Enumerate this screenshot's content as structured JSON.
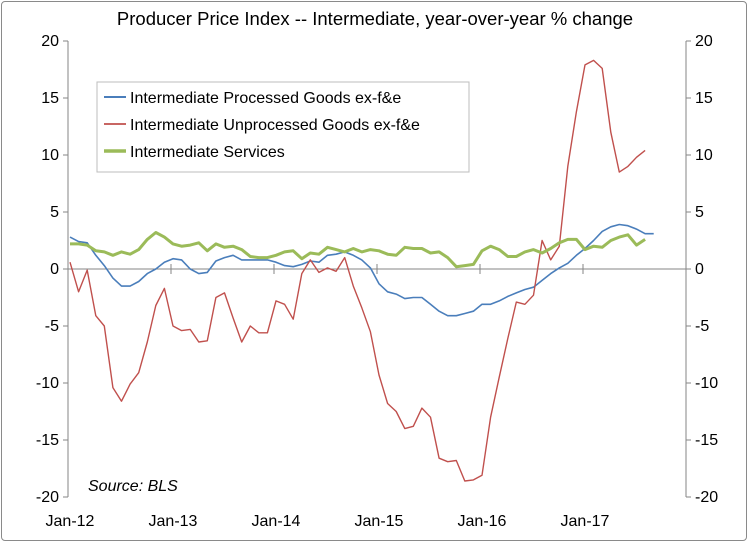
{
  "chart_data": {
    "type": "line",
    "title": "Producer Price Index -- Intermediate, year-over-year % change",
    "source": "Source: BLS",
    "ylim": [
      -20,
      20
    ],
    "y_ticks": [
      -20,
      -15,
      -10,
      -5,
      0,
      5,
      10,
      15,
      20
    ],
    "y_tick_labels": [
      "-20",
      "-15",
      "-10",
      "-5",
      "0",
      "5",
      "10",
      "15",
      "20"
    ],
    "x_tick_labels": [
      "Jan-12",
      "Jan-13",
      "Jan-14",
      "Jan-15",
      "Jan-16",
      "Jan-17"
    ],
    "x_start": "2012-01",
    "x_end": "2017-12",
    "legend_position": "top-left",
    "grid": false,
    "dual_y_axis": true,
    "series": [
      {
        "name": "Intermediate Processed Goods ex-f&e",
        "color": "#4a7ebb",
        "values": [
          2.8,
          2.4,
          2.3,
          1.2,
          0.3,
          -0.8,
          -1.5,
          -1.5,
          -1.1,
          -0.4,
          0.0,
          0.6,
          0.9,
          0.8,
          0.0,
          -0.4,
          -0.3,
          0.7,
          1.0,
          1.2,
          0.8,
          0.8,
          0.8,
          0.8,
          0.6,
          0.3,
          0.2,
          0.4,
          0.7,
          0.6,
          1.2,
          1.3,
          1.5,
          1.2,
          0.8,
          0.1,
          -1.3,
          -2.0,
          -2.2,
          -2.6,
          -2.5,
          -2.5,
          -3.1,
          -3.7,
          -4.1,
          -4.1,
          -3.9,
          -3.7,
          -3.1,
          -3.1,
          -2.8,
          -2.4,
          -2.1,
          -1.8,
          -1.6,
          -1.0,
          -0.4,
          0.1,
          0.5,
          1.2,
          1.8,
          2.5,
          3.3,
          3.7,
          3.9,
          3.8,
          3.5,
          3.1,
          3.1
        ]
      },
      {
        "name": "Intermediate Unprocessed Goods ex-f&e",
        "color": "#c0504d",
        "values": [
          0.6,
          -2.0,
          -0.1,
          -4.1,
          -5.0,
          -10.4,
          -11.6,
          -10.1,
          -9.1,
          -6.4,
          -3.2,
          -1.7,
          -5.0,
          -5.4,
          -5.3,
          -6.4,
          -6.3,
          -2.5,
          -2.1,
          -4.3,
          -6.4,
          -5.0,
          -5.6,
          -5.6,
          -2.8,
          -3.1,
          -4.4,
          -0.4,
          0.8,
          -0.3,
          0.1,
          -0.2,
          1.0,
          -1.5,
          -3.4,
          -5.5,
          -9.3,
          -11.8,
          -12.5,
          -14.0,
          -13.8,
          -12.2,
          -13.0,
          -16.6,
          -16.9,
          -16.8,
          -18.6,
          -18.5,
          -18.1,
          -13.0,
          -9.5,
          -6.1,
          -2.9,
          -3.1,
          -2.3,
          2.5,
          0.8,
          2.0,
          9.0,
          13.8,
          17.9,
          18.3,
          17.6,
          12.0,
          8.5,
          9.0,
          9.8,
          10.4
        ]
      },
      {
        "name": "Intermediate Services",
        "color": "#9bbb59",
        "values": [
          2.2,
          2.2,
          2.1,
          1.6,
          1.5,
          1.2,
          1.5,
          1.3,
          1.7,
          2.6,
          3.2,
          2.8,
          2.2,
          2.0,
          2.1,
          2.3,
          1.6,
          2.2,
          1.9,
          2.0,
          1.7,
          1.1,
          1.0,
          1.0,
          1.2,
          1.5,
          1.6,
          0.9,
          1.4,
          1.3,
          1.9,
          1.7,
          1.5,
          1.8,
          1.5,
          1.7,
          1.6,
          1.3,
          1.2,
          1.9,
          1.8,
          1.8,
          1.4,
          1.5,
          1.0,
          0.2,
          0.3,
          0.4,
          1.6,
          2.0,
          1.7,
          1.1,
          1.1,
          1.5,
          1.7,
          1.4,
          1.8,
          2.3,
          2.6,
          2.6,
          1.7,
          2.0,
          1.9,
          2.5,
          2.8,
          3.0,
          2.1,
          2.6
        ]
      }
    ]
  }
}
